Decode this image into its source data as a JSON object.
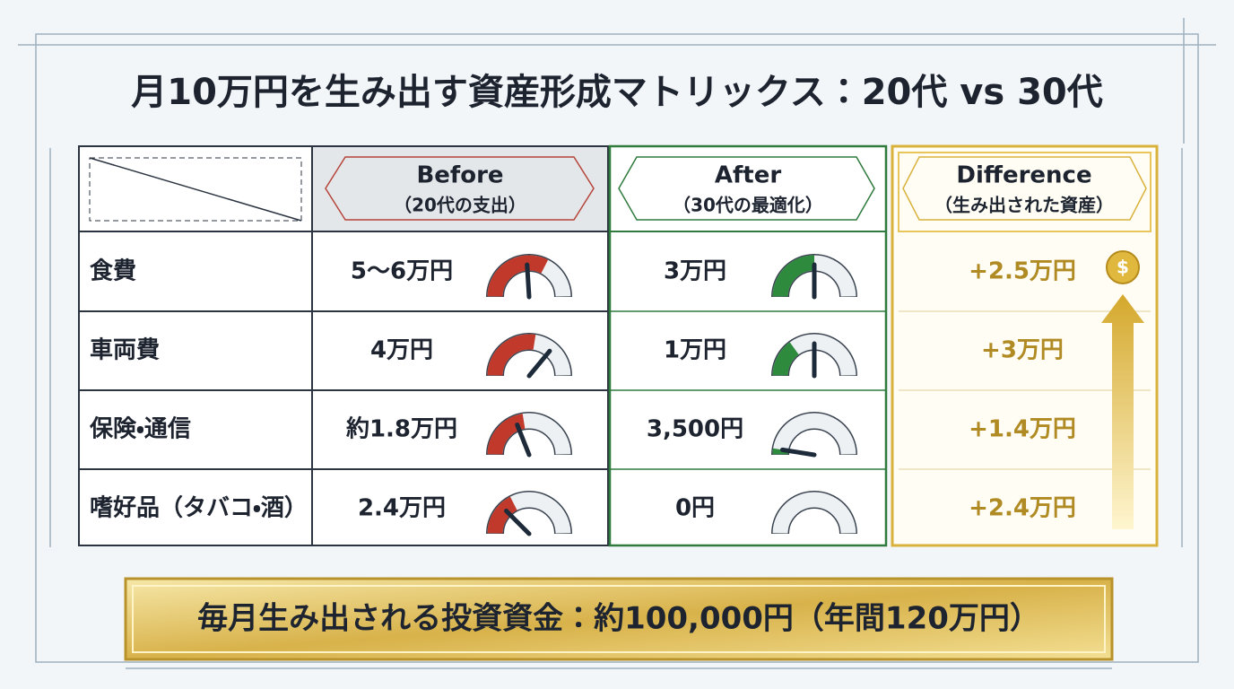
{
  "title": "月10万円を生み出す資産形成マトリックス：20代 vs 30代",
  "table": {
    "columns": [
      {
        "name": "Before",
        "note": "（20代の支出）"
      },
      {
        "name": "After",
        "note": "（30代の最適化）"
      },
      {
        "name": "Difference",
        "note": "（生み出された資産）"
      }
    ],
    "rows": [
      {
        "label": "食費",
        "before": "5〜6万円",
        "after": "3万円",
        "difference": "+2.5万円"
      },
      {
        "label": "車両費",
        "before": "4万円",
        "after": "1万円",
        "difference": "+3万円"
      },
      {
        "label": "保険・通信",
        "before": "約1.8万円",
        "after": "3,500円",
        "difference": "+1.4万円"
      },
      {
        "label": "嗜好品（タバコ・酒）",
        "before": "2.4万円",
        "after": "0円",
        "difference": "+2.4万円"
      }
    ]
  },
  "footer": "毎月生み出される投資資金：約100,000円（年間120万円）"
}
